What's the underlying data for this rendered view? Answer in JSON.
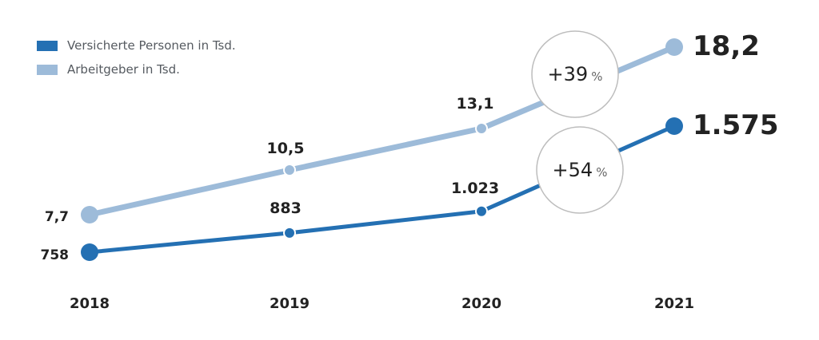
{
  "colors": {
    "dark_series": "#2470b3",
    "light_series": "#9dbbd9",
    "bubble_stroke": "#bdbdbd",
    "text": "#222222"
  },
  "legend": [
    {
      "label": "Versicherte Personen in Tsd.",
      "color": "#2470b3"
    },
    {
      "label": "Arbeitgeber in Tsd.",
      "color": "#9dbbd9"
    }
  ],
  "chart_data": {
    "type": "line",
    "title": "",
    "xlabel": "",
    "ylabel": "",
    "grid": false,
    "legend_position": "top-left",
    "x": [
      "2018",
      "2019",
      "2020",
      "2021"
    ],
    "series": [
      {
        "name": "Versicherte Personen in Tsd.",
        "values": [
          758,
          883,
          1023,
          1575
        ],
        "labels": [
          "758",
          "883",
          "1.023",
          "1.575"
        ]
      },
      {
        "name": "Arbeitgeber in Tsd.",
        "values": [
          7.7,
          10.5,
          13.1,
          18.2
        ],
        "labels": [
          "7,7",
          "10,5",
          "13,1",
          "18,2"
        ]
      }
    ],
    "annotations": [
      {
        "series": "Arbeitgeber in Tsd.",
        "from": "2020",
        "to": "2021",
        "value": "+39",
        "unit": "%"
      },
      {
        "series": "Versicherte Personen in Tsd.",
        "from": "2020",
        "to": "2021",
        "value": "+54",
        "unit": "%"
      }
    ]
  }
}
